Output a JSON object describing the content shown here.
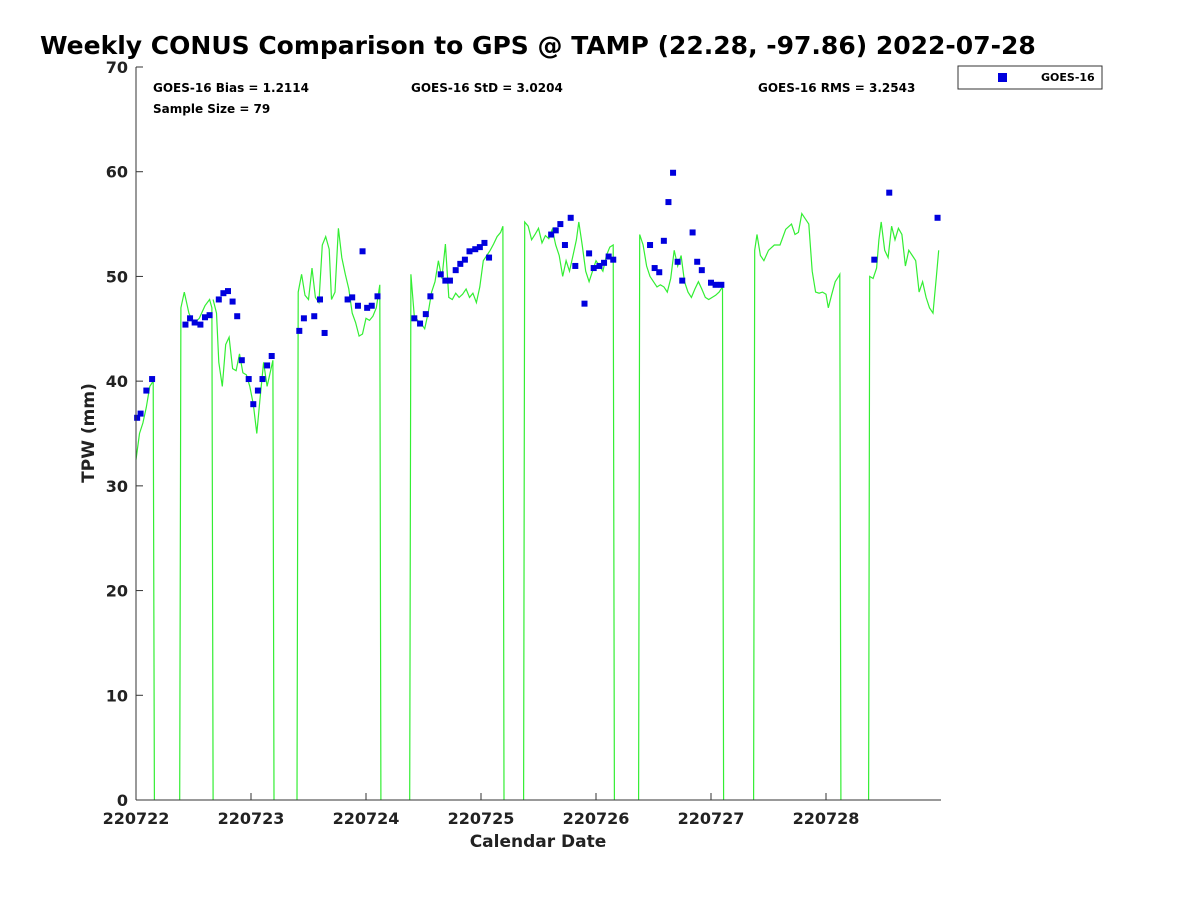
{
  "chart_data": {
    "type": "scatter",
    "title": "Weekly CONUS Comparison to GPS @ TAMP (22.28, -97.86) 2022-07-28",
    "xlabel": "Calendar Date",
    "ylabel": "TPW (mm)",
    "xlim": [
      22.0,
      29.0
    ],
    "ylim": [
      0,
      70
    ],
    "x_ticks": [
      22,
      23,
      24,
      25,
      26,
      27,
      28
    ],
    "x_tick_labels": [
      "220722",
      "220723",
      "220724",
      "220725",
      "220726",
      "220727",
      "220728"
    ],
    "y_ticks": [
      0,
      10,
      20,
      30,
      40,
      50,
      60,
      70
    ],
    "y_tick_labels": [
      "0",
      "10",
      "20",
      "30",
      "40",
      "50",
      "60",
      "70"
    ],
    "grid": false,
    "legend_position": "top-right",
    "colors": {
      "goes": "#0000dd",
      "gps": "#33ee33"
    },
    "stats": {
      "bias": "GOES-16 Bias = 1.2114",
      "std": "GOES-16 StD = 3.0204",
      "rms": "GOES-16 RMS = 3.2543",
      "n": "Sample Size = 79"
    },
    "series": [
      {
        "name": "GOES-16",
        "marker": "square",
        "points": [
          [
            22.01,
            36.5
          ],
          [
            22.04,
            36.9
          ],
          [
            22.09,
            39.1
          ],
          [
            22.14,
            40.2
          ],
          [
            22.43,
            45.4
          ],
          [
            22.47,
            46.0
          ],
          [
            22.51,
            45.6
          ],
          [
            22.56,
            45.4
          ],
          [
            22.6,
            46.1
          ],
          [
            22.64,
            46.3
          ],
          [
            22.72,
            47.8
          ],
          [
            22.76,
            48.4
          ],
          [
            22.8,
            48.6
          ],
          [
            22.84,
            47.6
          ],
          [
            22.88,
            46.2
          ],
          [
            22.92,
            42.0
          ],
          [
            22.98,
            40.2
          ],
          [
            23.02,
            37.8
          ],
          [
            23.06,
            39.1
          ],
          [
            23.1,
            40.2
          ],
          [
            23.14,
            41.5
          ],
          [
            23.18,
            42.4
          ],
          [
            23.42,
            44.8
          ],
          [
            23.46,
            46.0
          ],
          [
            23.55,
            46.2
          ],
          [
            23.6,
            47.8
          ],
          [
            23.64,
            44.6
          ],
          [
            23.84,
            47.8
          ],
          [
            23.88,
            48.0
          ],
          [
            23.93,
            47.2
          ],
          [
            23.97,
            52.4
          ],
          [
            24.01,
            47.0
          ],
          [
            24.05,
            47.2
          ],
          [
            24.1,
            48.1
          ],
          [
            24.42,
            46.0
          ],
          [
            24.47,
            45.5
          ],
          [
            24.52,
            46.4
          ],
          [
            24.56,
            48.1
          ],
          [
            24.65,
            50.2
          ],
          [
            24.69,
            49.6
          ],
          [
            24.73,
            49.6
          ],
          [
            24.78,
            50.6
          ],
          [
            24.82,
            51.2
          ],
          [
            24.86,
            51.6
          ],
          [
            24.9,
            52.4
          ],
          [
            24.95,
            52.6
          ],
          [
            24.99,
            52.8
          ],
          [
            25.03,
            53.2
          ],
          [
            25.07,
            51.8
          ],
          [
            25.61,
            54.0
          ],
          [
            25.65,
            54.4
          ],
          [
            25.69,
            55.0
          ],
          [
            25.73,
            53.0
          ],
          [
            25.78,
            55.6
          ],
          [
            25.82,
            51.0
          ],
          [
            25.9,
            47.4
          ],
          [
            25.94,
            52.2
          ],
          [
            25.98,
            50.8
          ],
          [
            26.03,
            51.0
          ],
          [
            26.07,
            51.3
          ],
          [
            26.11,
            51.9
          ],
          [
            26.15,
            51.6
          ],
          [
            26.47,
            53.0
          ],
          [
            26.51,
            50.8
          ],
          [
            26.55,
            50.4
          ],
          [
            26.59,
            53.4
          ],
          [
            26.63,
            57.1
          ],
          [
            26.67,
            59.9
          ],
          [
            26.71,
            51.4
          ],
          [
            26.75,
            49.6
          ],
          [
            26.84,
            54.2
          ],
          [
            26.88,
            51.4
          ],
          [
            26.92,
            50.6
          ],
          [
            27.0,
            49.4
          ],
          [
            27.04,
            49.2
          ],
          [
            27.09,
            49.2
          ],
          [
            28.42,
            51.6
          ],
          [
            28.55,
            58.0
          ],
          [
            28.97,
            55.6
          ]
        ]
      },
      {
        "name": "GPS",
        "style": "line",
        "segments": [
          [
            [
              22.0,
              32.5
            ],
            [
              22.03,
              35.0
            ],
            [
              22.06,
              36.0
            ],
            [
              22.09,
              37.5
            ],
            [
              22.12,
              39.5
            ],
            [
              22.15,
              40.0
            ],
            [
              22.16,
              0
            ]
          ],
          [
            [
              22.38,
              0
            ],
            [
              22.39,
              47.0
            ],
            [
              22.42,
              48.5
            ],
            [
              22.46,
              46.5
            ],
            [
              22.5,
              45.5
            ],
            [
              22.55,
              46.0
            ],
            [
              22.6,
              47.2
            ],
            [
              22.64,
              47.8
            ],
            [
              22.66,
              47.0
            ],
            [
              22.67,
              0
            ]
          ],
          [
            [
              22.67,
              47.8
            ],
            [
              22.7,
              46.5
            ],
            [
              22.72,
              41.8
            ],
            [
              22.75,
              39.5
            ],
            [
              22.78,
              43.5
            ],
            [
              22.81,
              44.2
            ],
            [
              22.84,
              41.2
            ],
            [
              22.87,
              41.0
            ],
            [
              22.9,
              42.6
            ],
            [
              22.93,
              40.8
            ],
            [
              22.96,
              40.6
            ],
            [
              22.99,
              39.5
            ],
            [
              23.02,
              37.8
            ],
            [
              23.05,
              35.0
            ],
            [
              23.08,
              38.5
            ],
            [
              23.11,
              41.8
            ],
            [
              23.14,
              39.5
            ],
            [
              23.17,
              41.0
            ],
            [
              23.19,
              42.0
            ],
            [
              23.2,
              0
            ]
          ],
          [
            [
              23.4,
              0
            ],
            [
              23.41,
              48.5
            ],
            [
              23.44,
              50.2
            ],
            [
              23.47,
              48.2
            ],
            [
              23.5,
              47.8
            ],
            [
              23.53,
              50.8
            ],
            [
              23.56,
              48.0
            ],
            [
              23.59,
              47.5
            ],
            [
              23.62,
              53.0
            ],
            [
              23.65,
              53.8
            ],
            [
              23.68,
              52.6
            ],
            [
              23.7,
              47.8
            ],
            [
              23.73,
              48.5
            ],
            [
              23.76,
              54.6
            ],
            [
              23.79,
              51.8
            ],
            [
              23.82,
              50.2
            ],
            [
              23.85,
              48.8
            ],
            [
              23.88,
              46.5
            ],
            [
              23.91,
              45.6
            ],
            [
              23.94,
              44.3
            ],
            [
              23.97,
              44.5
            ],
            [
              24.0,
              46.0
            ],
            [
              24.03,
              45.8
            ],
            [
              24.06,
              46.2
            ],
            [
              24.09,
              47.0
            ],
            [
              24.12,
              49.2
            ],
            [
              24.13,
              0
            ]
          ],
          [
            [
              24.38,
              0
            ],
            [
              24.39,
              50.2
            ],
            [
              24.42,
              46.2
            ],
            [
              24.45,
              45.8
            ],
            [
              24.48,
              45.5
            ],
            [
              24.51,
              45.0
            ],
            [
              24.54,
              46.5
            ],
            [
              24.57,
              48.5
            ],
            [
              24.6,
              49.5
            ],
            [
              24.63,
              51.5
            ],
            [
              24.66,
              49.8
            ],
            [
              24.69,
              53.1
            ],
            [
              24.72,
              48.0
            ],
            [
              24.75,
              47.8
            ],
            [
              24.78,
              48.4
            ],
            [
              24.81,
              48.0
            ],
            [
              24.84,
              48.3
            ],
            [
              24.87,
              48.8
            ],
            [
              24.9,
              48.0
            ],
            [
              24.93,
              48.4
            ],
            [
              24.96,
              47.5
            ],
            [
              24.99,
              49.0
            ],
            [
              25.02,
              51.5
            ],
            [
              25.05,
              52.0
            ],
            [
              25.08,
              52.5
            ],
            [
              25.11,
              53.1
            ],
            [
              25.14,
              53.8
            ],
            [
              25.17,
              54.2
            ],
            [
              25.19,
              54.8
            ],
            [
              25.2,
              0
            ]
          ],
          [
            [
              25.37,
              0
            ],
            [
              25.38,
              55.2
            ],
            [
              25.41,
              54.8
            ],
            [
              25.44,
              53.5
            ],
            [
              25.47,
              54.0
            ],
            [
              25.5,
              54.6
            ],
            [
              25.53,
              53.2
            ],
            [
              25.56,
              53.9
            ],
            [
              25.59,
              53.6
            ],
            [
              25.62,
              54.5
            ],
            [
              25.65,
              53.0
            ],
            [
              25.68,
              52.0
            ],
            [
              25.71,
              50.0
            ],
            [
              25.74,
              51.5
            ],
            [
              25.77,
              50.5
            ],
            [
              25.8,
              52.0
            ],
            [
              25.83,
              53.5
            ],
            [
              25.85,
              55.2
            ],
            [
              25.88,
              53.0
            ],
            [
              25.91,
              50.5
            ],
            [
              25.94,
              49.5
            ],
            [
              25.97,
              50.5
            ],
            [
              26.0,
              51.5
            ],
            [
              26.03,
              51.0
            ],
            [
              26.06,
              50.5
            ],
            [
              26.09,
              52.0
            ],
            [
              26.12,
              52.8
            ],
            [
              26.15,
              53.0
            ],
            [
              26.16,
              0
            ]
          ],
          [
            [
              26.37,
              0
            ],
            [
              26.38,
              54.0
            ],
            [
              26.41,
              53.0
            ],
            [
              26.44,
              51.0
            ],
            [
              26.47,
              50.0
            ],
            [
              26.5,
              49.5
            ],
            [
              26.53,
              49.0
            ],
            [
              26.56,
              49.2
            ],
            [
              26.59,
              49.0
            ],
            [
              26.62,
              48.5
            ],
            [
              26.65,
              49.8
            ],
            [
              26.68,
              52.5
            ],
            [
              26.71,
              51.0
            ],
            [
              26.74,
              52.0
            ],
            [
              26.77,
              49.5
            ],
            [
              26.8,
              48.5
            ],
            [
              26.83,
              48.0
            ],
            [
              26.86,
              48.8
            ],
            [
              26.89,
              49.5
            ],
            [
              26.92,
              48.8
            ],
            [
              26.95,
              48.0
            ],
            [
              26.98,
              47.8
            ],
            [
              27.01,
              48.0
            ],
            [
              27.04,
              48.2
            ],
            [
              27.07,
              48.5
            ],
            [
              27.1,
              49.0
            ],
            [
              27.11,
              0
            ]
          ],
          [
            [
              27.37,
              0
            ],
            [
              27.38,
              52.5
            ],
            [
              27.4,
              54.0
            ],
            [
              27.43,
              52.0
            ],
            [
              27.46,
              51.5
            ],
            [
              27.5,
              52.5
            ],
            [
              27.55,
              53.0
            ],
            [
              27.6,
              53.0
            ],
            [
              27.65,
              54.5
            ],
            [
              27.7,
              55.0
            ],
            [
              27.73,
              54.0
            ],
            [
              27.76,
              54.2
            ],
            [
              27.79,
              56.0
            ],
            [
              27.82,
              55.5
            ],
            [
              27.85,
              55.0
            ],
            [
              27.88,
              50.5
            ],
            [
              27.91,
              48.5
            ],
            [
              27.94,
              48.4
            ],
            [
              27.97,
              48.5
            ],
            [
              28.0,
              48.3
            ],
            [
              28.02,
              47.0
            ],
            [
              28.05,
              48.3
            ],
            [
              28.08,
              49.5
            ],
            [
              28.11,
              50.0
            ],
            [
              28.12,
              50.2
            ],
            [
              28.13,
              0
            ]
          ],
          [
            [
              28.37,
              0
            ],
            [
              28.38,
              50.0
            ],
            [
              28.41,
              49.8
            ],
            [
              28.44,
              50.8
            ],
            [
              28.46,
              53.5
            ],
            [
              28.48,
              55.2
            ],
            [
              28.51,
              52.5
            ],
            [
              28.54,
              51.8
            ],
            [
              28.57,
              54.8
            ],
            [
              28.6,
              53.5
            ],
            [
              28.63,
              54.6
            ],
            [
              28.66,
              54.0
            ],
            [
              28.69,
              51.0
            ],
            [
              28.72,
              52.5
            ],
            [
              28.75,
              52.0
            ],
            [
              28.78,
              51.5
            ],
            [
              28.81,
              48.5
            ],
            [
              28.84,
              49.5
            ],
            [
              28.87,
              48.0
            ],
            [
              28.9,
              47.0
            ],
            [
              28.93,
              46.5
            ],
            [
              28.96,
              50.0
            ],
            [
              28.98,
              52.5
            ]
          ]
        ]
      }
    ]
  }
}
